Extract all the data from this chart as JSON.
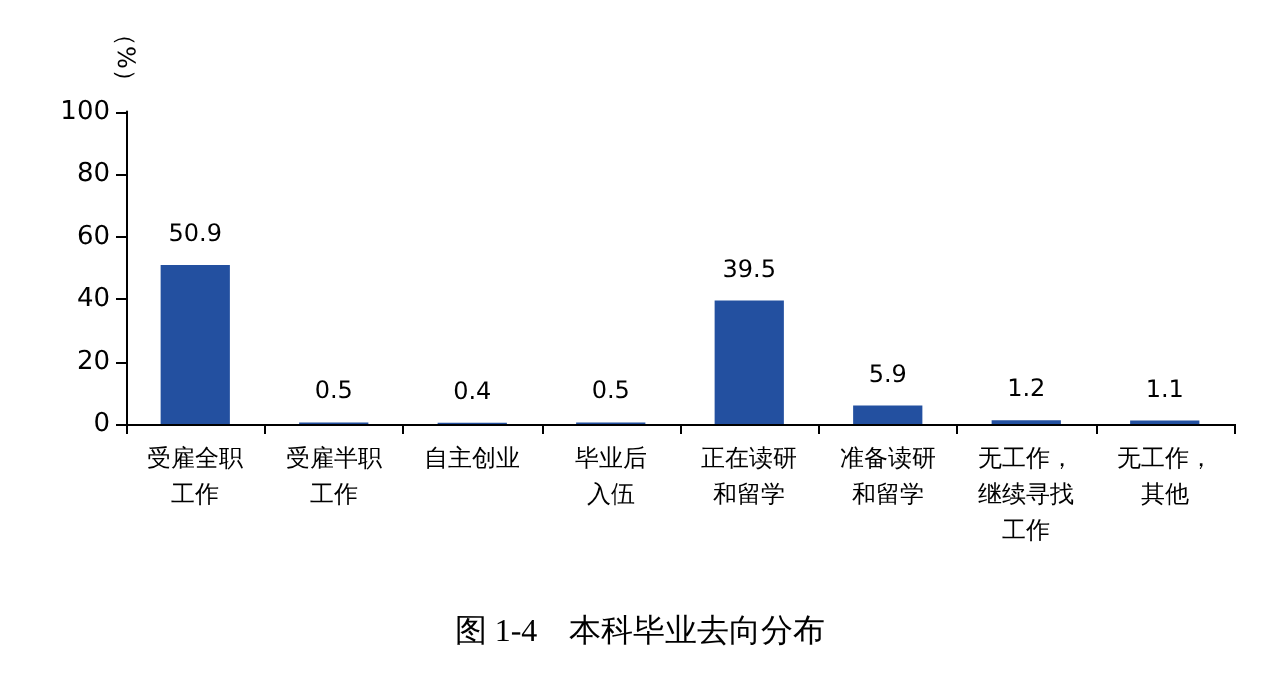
{
  "chart_data": {
    "type": "bar",
    "title": "图 1-4　本科毕业去向分布",
    "ylabel": "（%）",
    "categories": [
      "受雇全职工作",
      "受雇半职工作",
      "自主创业",
      "毕业后入伍",
      "正在读研和留学",
      "准备读研和留学",
      "无工作，继续寻找工作",
      "无工作，其他"
    ],
    "values": [
      50.9,
      0.5,
      0.4,
      0.5,
      39.5,
      5.9,
      1.2,
      1.1
    ],
    "color": "#2350a0",
    "ylim": [
      0,
      100
    ],
    "yticks": [
      0,
      20,
      40,
      60,
      80,
      100
    ],
    "grid": false,
    "data_labels": true
  }
}
